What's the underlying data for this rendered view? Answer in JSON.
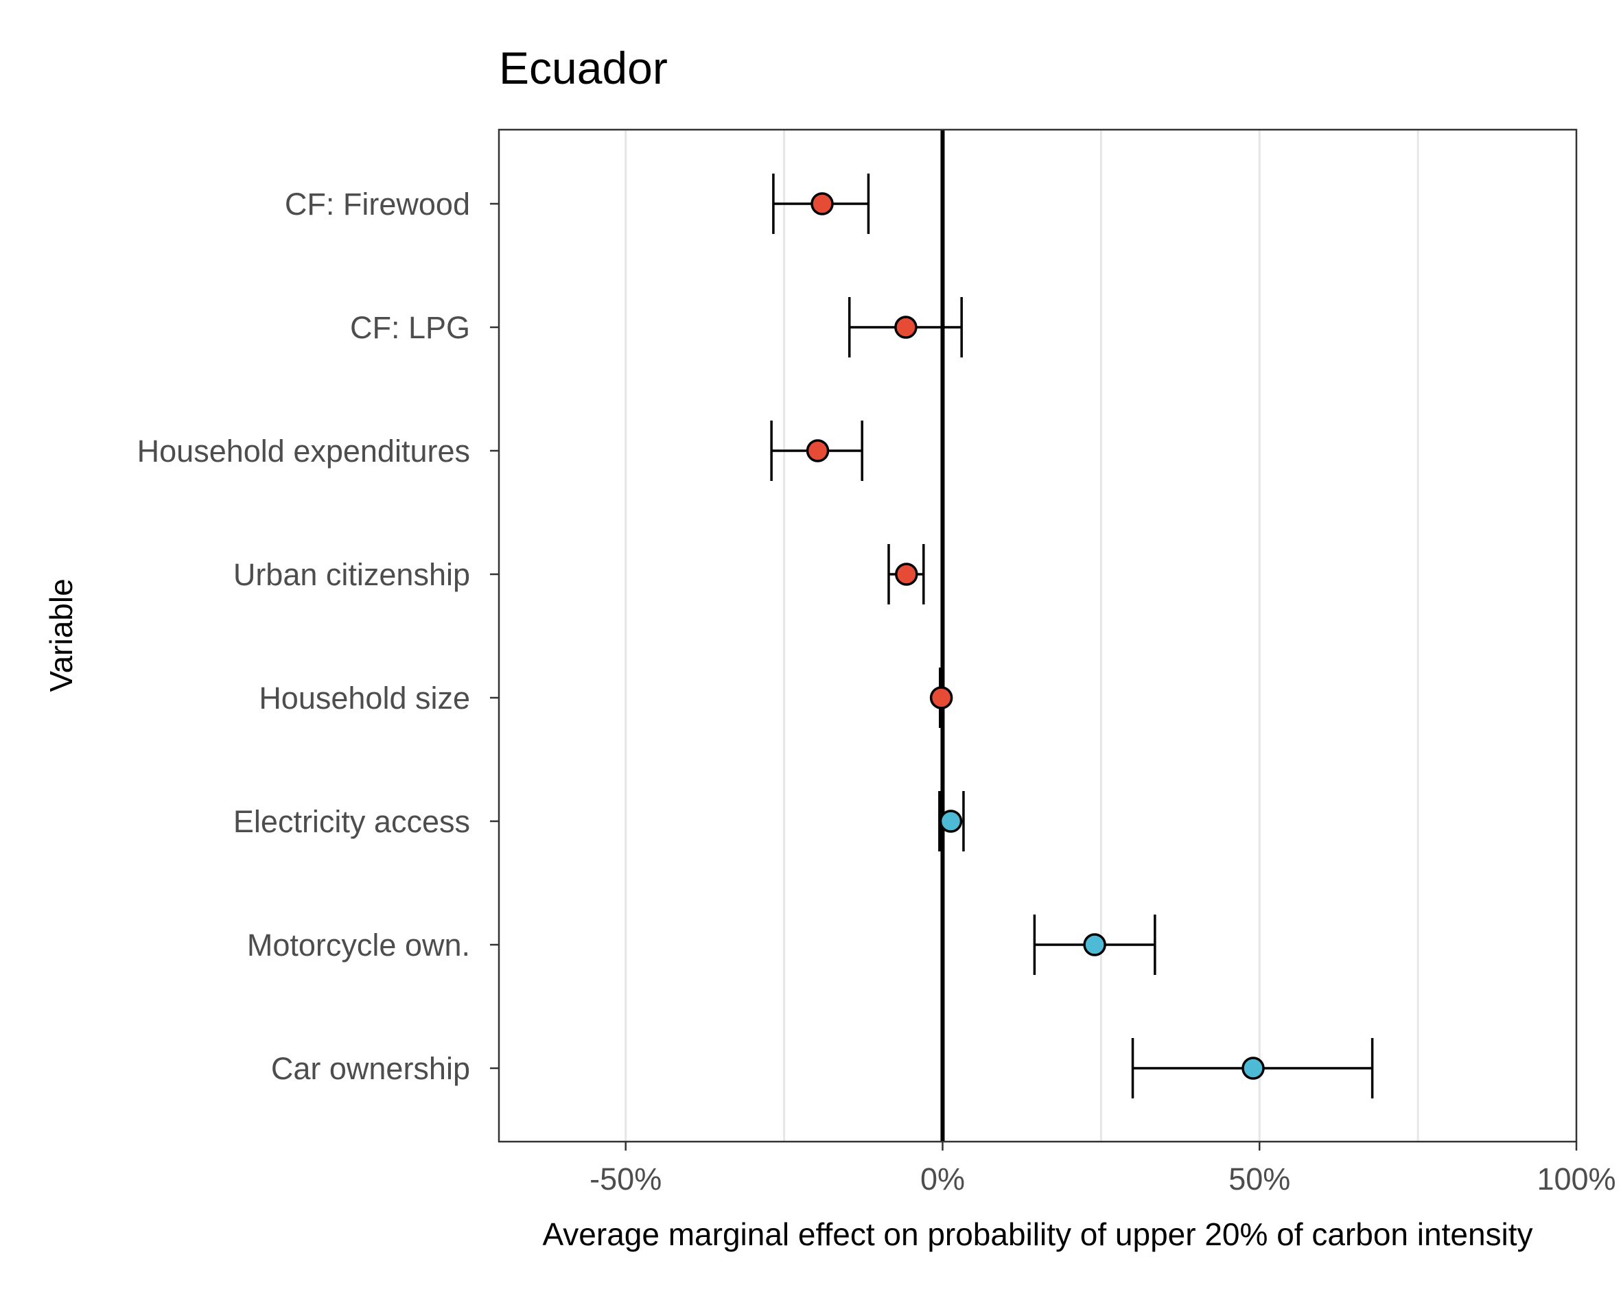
{
  "chart_data": {
    "type": "scatter",
    "title": "Ecuador",
    "xlabel": "Average marginal effect on probability of upper 20% of carbon intensity",
    "ylabel": "Variable",
    "xlim": [
      -0.7,
      1.0
    ],
    "x_ticks": [
      {
        "value": -0.5,
        "label": "-50%"
      },
      {
        "value": 0,
        "label": "0%"
      },
      {
        "value": 0.5,
        "label": "50%"
      },
      {
        "value": 1.0,
        "label": "100%"
      }
    ],
    "reference_line": 0,
    "grid": "vertical",
    "legend": "none",
    "colors": {
      "negative": "#E64B35",
      "positive": "#4DBBD5",
      "outline": "#000000",
      "grid": "#e6e6e6"
    },
    "points": [
      {
        "label": "CF: Firewood",
        "estimate": -0.19,
        "low": -0.267,
        "high": -0.117,
        "sign": "negative"
      },
      {
        "label": "CF: LPG",
        "estimate": -0.058,
        "low": -0.147,
        "high": 0.03,
        "sign": "negative"
      },
      {
        "label": "Household expenditures",
        "estimate": -0.197,
        "low": -0.27,
        "high": -0.127,
        "sign": "negative"
      },
      {
        "label": "Urban citizenship",
        "estimate": -0.057,
        "low": -0.085,
        "high": -0.03,
        "sign": "negative"
      },
      {
        "label": "Household size",
        "estimate": -0.002,
        "low": -0.004,
        "high": 0.0,
        "sign": "negative"
      },
      {
        "label": "Electricity access",
        "estimate": 0.013,
        "low": -0.005,
        "high": 0.033,
        "sign": "positive"
      },
      {
        "label": "Motorcycle own.",
        "estimate": 0.24,
        "low": 0.145,
        "high": 0.335,
        "sign": "positive"
      },
      {
        "label": "Car ownership",
        "estimate": 0.49,
        "low": 0.3,
        "high": 0.678,
        "sign": "positive"
      }
    ]
  }
}
